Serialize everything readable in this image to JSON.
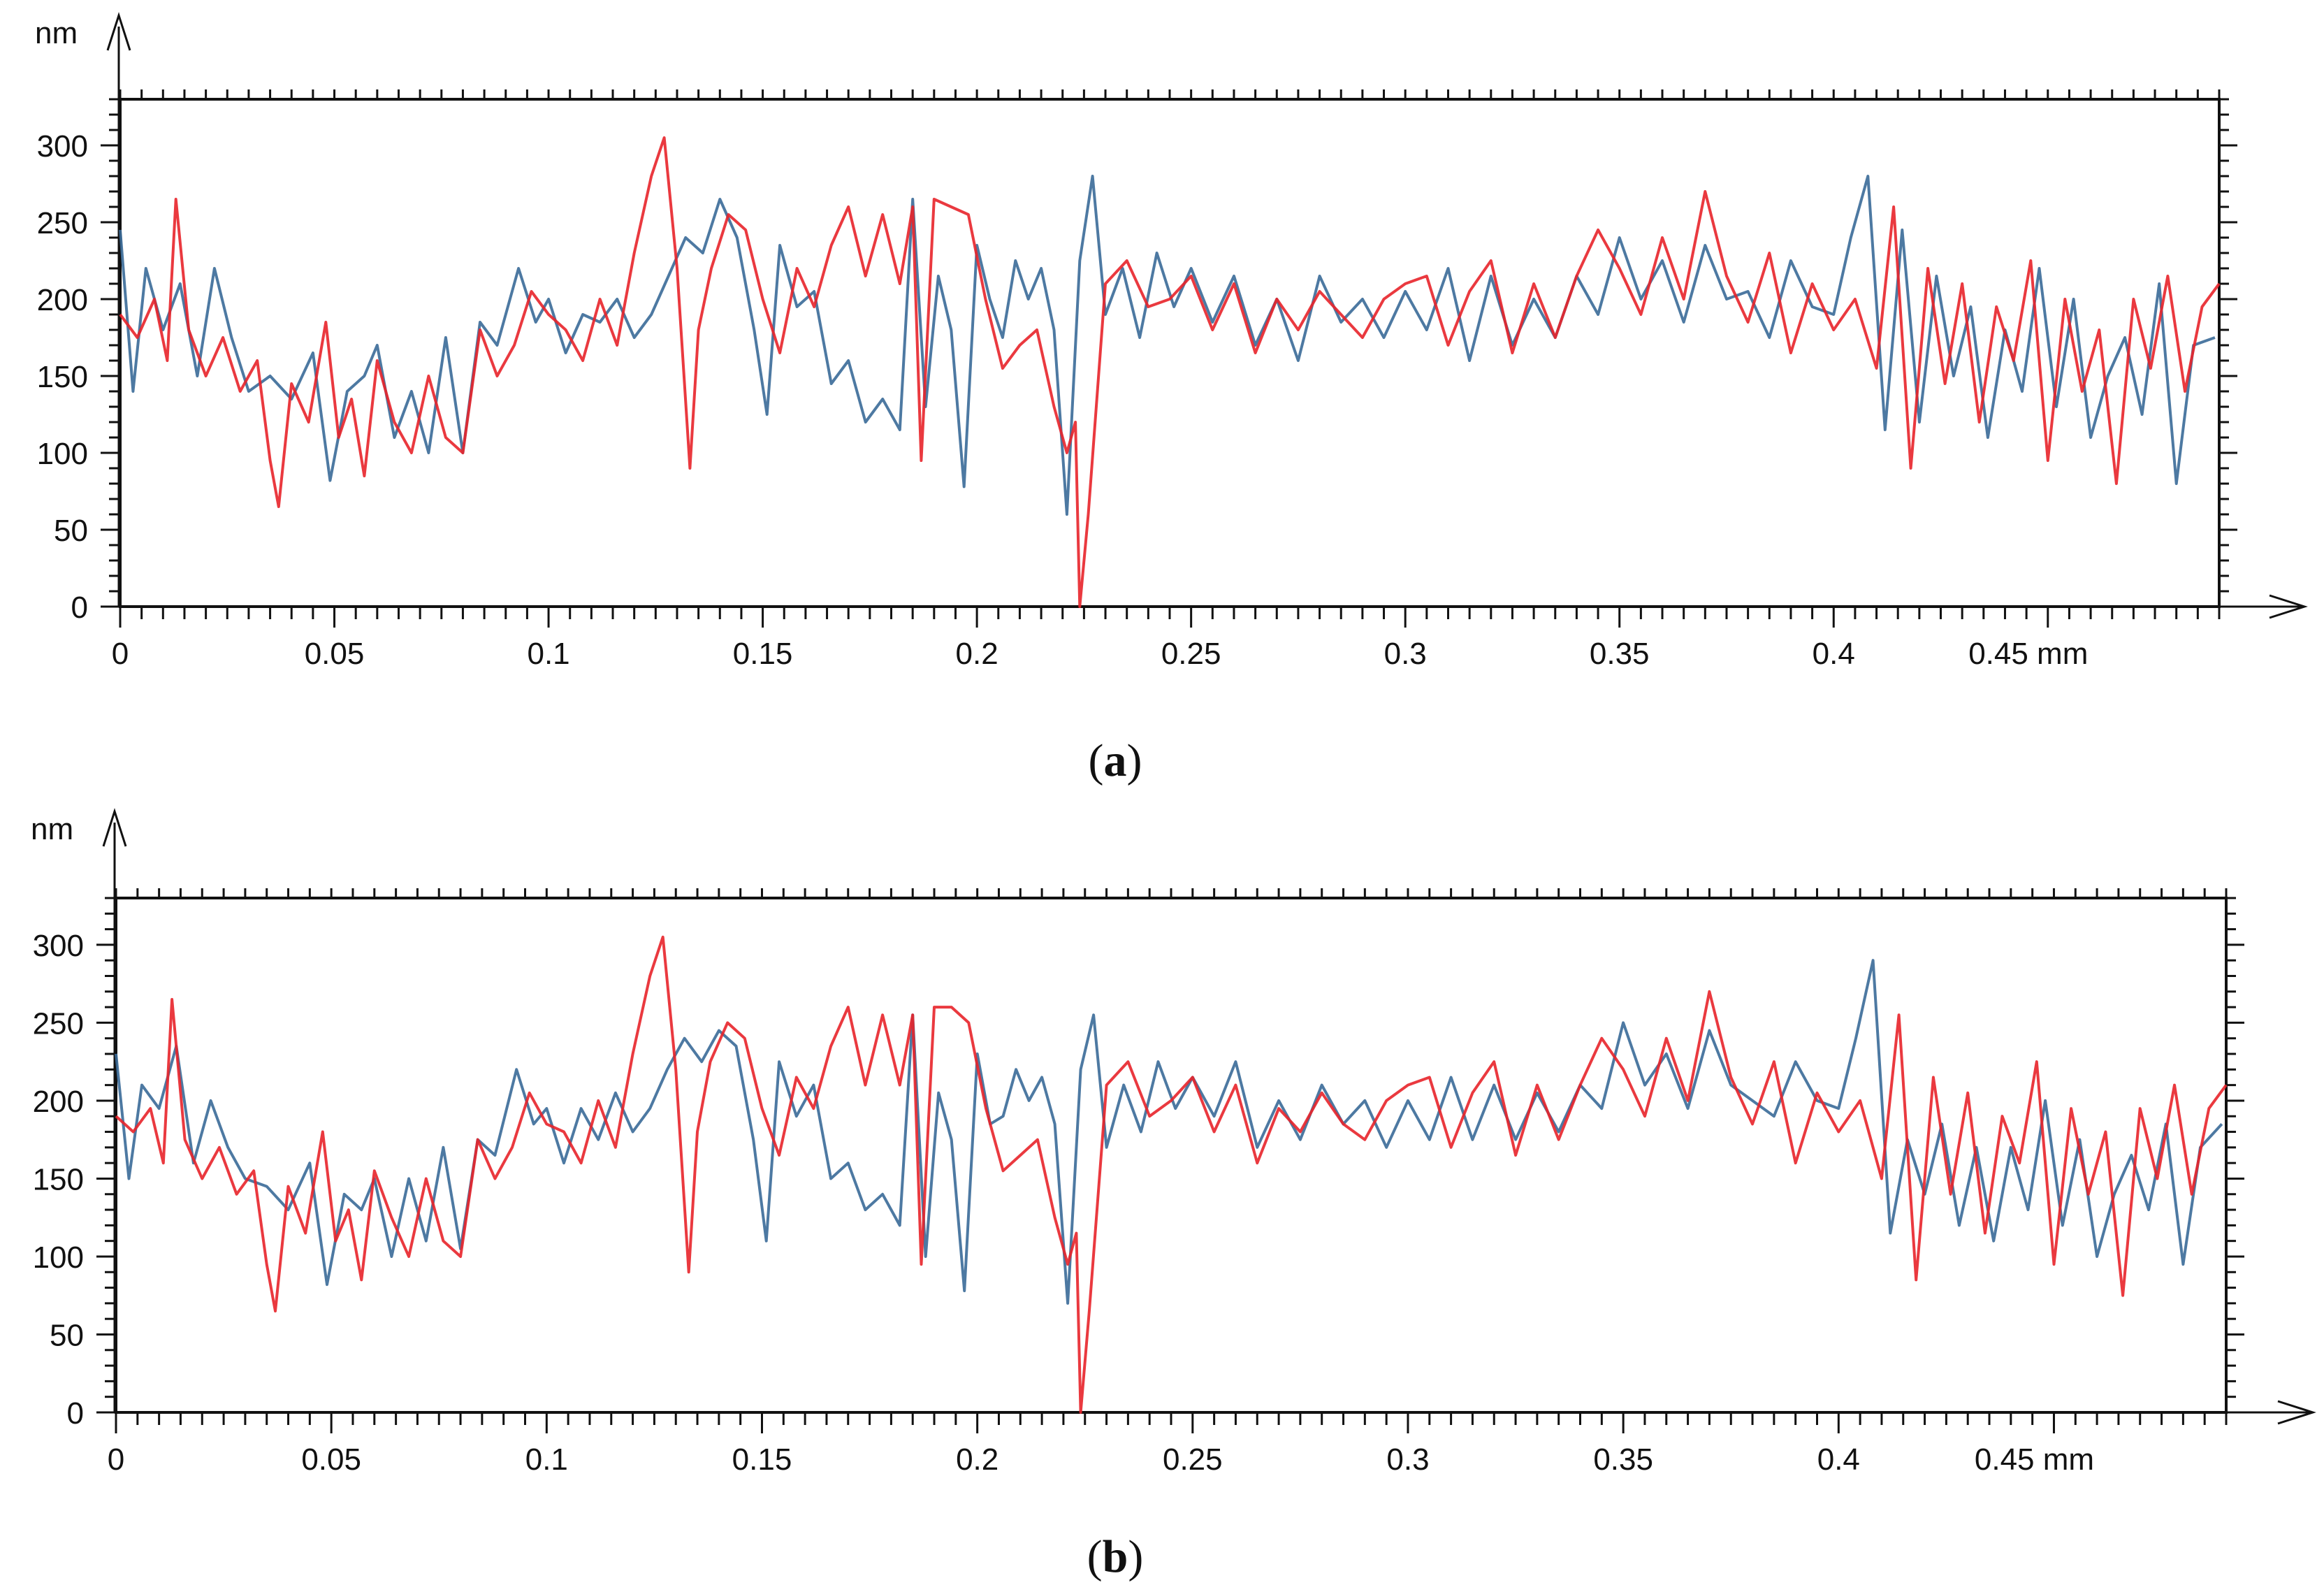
{
  "figure": {
    "panels": [
      {
        "caption_open": "(",
        "caption_letter": "a",
        "caption_close": ")"
      },
      {
        "caption_open": "(",
        "caption_letter": "b",
        "caption_close": ")"
      }
    ]
  },
  "chart_data": [
    {
      "type": "line",
      "panel": "a",
      "ylabel": "nm",
      "xlabel": "mm",
      "xlim": [
        0,
        0.49
      ],
      "ylim": [
        0,
        330
      ],
      "grid": true,
      "x_ticks": [
        "0",
        "0.05",
        "0.1",
        "0.15",
        "0.2",
        "0.25",
        "0.3",
        "0.35",
        "0.4",
        "0.45 mm"
      ],
      "x_tick_values": [
        0,
        0.05,
        0.1,
        0.15,
        0.2,
        0.25,
        0.3,
        0.35,
        0.4,
        0.45
      ],
      "y_ticks": [
        "0",
        "50",
        "100",
        "150",
        "200",
        "250",
        "300"
      ],
      "y_tick_values": [
        0,
        50,
        100,
        150,
        200,
        250,
        300
      ],
      "series": [
        {
          "name": "blue profile",
          "color": "#3a6a98",
          "x": [
            0,
            0.003,
            0.006,
            0.01,
            0.014,
            0.018,
            0.022,
            0.026,
            0.03,
            0.035,
            0.04,
            0.045,
            0.049,
            0.053,
            0.057,
            0.06,
            0.064,
            0.068,
            0.072,
            0.076,
            0.08,
            0.084,
            0.088,
            0.093,
            0.097,
            0.1,
            0.104,
            0.108,
            0.112,
            0.116,
            0.12,
            0.124,
            0.128,
            0.132,
            0.136,
            0.14,
            0.144,
            0.148,
            0.151,
            0.154,
            0.158,
            0.162,
            0.166,
            0.17,
            0.174,
            0.178,
            0.182,
            0.185,
            0.188,
            0.191,
            0.194,
            0.197,
            0.2,
            0.203,
            0.206,
            0.209,
            0.212,
            0.215,
            0.218,
            0.221,
            0.224,
            0.227,
            0.23,
            0.234,
            0.238,
            0.242,
            0.246,
            0.25,
            0.255,
            0.26,
            0.265,
            0.27,
            0.275,
            0.28,
            0.285,
            0.29,
            0.295,
            0.3,
            0.305,
            0.31,
            0.315,
            0.32,
            0.325,
            0.33,
            0.335,
            0.34,
            0.345,
            0.35,
            0.355,
            0.36,
            0.365,
            0.37,
            0.375,
            0.38,
            0.385,
            0.39,
            0.395,
            0.4,
            0.404,
            0.408,
            0.412,
            0.416,
            0.42,
            0.424,
            0.428,
            0.432,
            0.436,
            0.44,
            0.444,
            0.448,
            0.452,
            0.456,
            0.46,
            0.464,
            0.468,
            0.472,
            0.476,
            0.48,
            0.484,
            0.489
          ],
          "y": [
            245,
            140,
            220,
            180,
            210,
            150,
            220,
            175,
            140,
            150,
            135,
            165,
            82,
            140,
            150,
            170,
            110,
            140,
            100,
            175,
            100,
            185,
            170,
            220,
            185,
            200,
            165,
            190,
            185,
            200,
            175,
            190,
            215,
            240,
            230,
            265,
            240,
            180,
            125,
            235,
            195,
            205,
            145,
            160,
            120,
            135,
            115,
            265,
            130,
            215,
            180,
            78,
            235,
            200,
            175,
            225,
            200,
            220,
            180,
            60,
            225,
            280,
            190,
            220,
            175,
            230,
            195,
            220,
            185,
            215,
            170,
            200,
            160,
            215,
            185,
            200,
            175,
            205,
            180,
            220,
            160,
            215,
            170,
            200,
            175,
            215,
            190,
            240,
            200,
            225,
            185,
            235,
            200,
            205,
            175,
            225,
            195,
            190,
            240,
            280,
            115,
            245,
            120,
            215,
            150,
            195,
            110,
            180,
            140,
            220,
            130,
            200,
            110,
            150,
            175,
            125,
            210,
            80,
            170,
            175
          ]
        },
        {
          "name": "red profile",
          "color": "#e8232a",
          "x": [
            0,
            0.004,
            0.008,
            0.011,
            0.013,
            0.016,
            0.02,
            0.024,
            0.028,
            0.032,
            0.035,
            0.037,
            0.04,
            0.044,
            0.048,
            0.051,
            0.054,
            0.057,
            0.06,
            0.064,
            0.068,
            0.072,
            0.076,
            0.08,
            0.084,
            0.088,
            0.092,
            0.096,
            0.1,
            0.104,
            0.108,
            0.112,
            0.116,
            0.12,
            0.124,
            0.127,
            0.13,
            0.133,
            0.135,
            0.138,
            0.142,
            0.146,
            0.15,
            0.154,
            0.158,
            0.162,
            0.166,
            0.17,
            0.174,
            0.178,
            0.182,
            0.185,
            0.187,
            0.19,
            0.194,
            0.198,
            0.202,
            0.206,
            0.21,
            0.214,
            0.218,
            0.221,
            0.223,
            0.224,
            0.226,
            0.23,
            0.235,
            0.24,
            0.245,
            0.25,
            0.255,
            0.26,
            0.265,
            0.27,
            0.275,
            0.28,
            0.285,
            0.29,
            0.295,
            0.3,
            0.305,
            0.31,
            0.315,
            0.32,
            0.325,
            0.33,
            0.335,
            0.34,
            0.345,
            0.35,
            0.355,
            0.36,
            0.365,
            0.37,
            0.375,
            0.38,
            0.385,
            0.39,
            0.395,
            0.4,
            0.405,
            0.41,
            0.414,
            0.418,
            0.422,
            0.426,
            0.43,
            0.434,
            0.438,
            0.442,
            0.446,
            0.45,
            0.454,
            0.458,
            0.462,
            0.466,
            0.47,
            0.474,
            0.478,
            0.482,
            0.486,
            0.49
          ],
          "y": [
            190,
            175,
            200,
            160,
            265,
            180,
            150,
            175,
            140,
            160,
            95,
            65,
            145,
            120,
            185,
            110,
            135,
            85,
            160,
            120,
            100,
            150,
            110,
            100,
            180,
            150,
            170,
            205,
            190,
            180,
            160,
            200,
            170,
            230,
            280,
            305,
            220,
            90,
            180,
            220,
            255,
            245,
            200,
            165,
            220,
            195,
            235,
            260,
            215,
            255,
            210,
            260,
            95,
            265,
            260,
            255,
            200,
            155,
            170,
            180,
            130,
            100,
            120,
            0,
            60,
            210,
            225,
            195,
            200,
            215,
            180,
            210,
            165,
            200,
            180,
            205,
            190,
            175,
            200,
            210,
            215,
            170,
            205,
            225,
            165,
            210,
            175,
            215,
            245,
            220,
            190,
            240,
            200,
            270,
            215,
            185,
            230,
            165,
            210,
            180,
            200,
            155,
            260,
            90,
            220,
            145,
            210,
            120,
            195,
            160,
            225,
            95,
            200,
            140,
            180,
            80,
            200,
            155,
            215,
            140,
            195,
            210
          ]
        }
      ]
    },
    {
      "type": "line",
      "panel": "b",
      "ylabel": "nm",
      "xlabel": "mm",
      "xlim": [
        0,
        0.49
      ],
      "ylim": [
        0,
        330
      ],
      "grid": true,
      "x_ticks": [
        "0",
        "0.05",
        "0.1",
        "0.15",
        "0.2",
        "0.25",
        "0.3",
        "0.35",
        "0.4",
        "0.45 mm"
      ],
      "x_tick_values": [
        0,
        0.05,
        0.1,
        0.15,
        0.2,
        0.25,
        0.3,
        0.35,
        0.4,
        0.45
      ],
      "y_ticks": [
        "0",
        "50",
        "100",
        "150",
        "200",
        "250",
        "300"
      ],
      "y_tick_values": [
        0,
        50,
        100,
        150,
        200,
        250,
        300
      ],
      "series": [
        {
          "name": "blue profile",
          "color": "#3a6a98",
          "x": [
            0,
            0.003,
            0.006,
            0.01,
            0.014,
            0.018,
            0.022,
            0.026,
            0.03,
            0.035,
            0.04,
            0.045,
            0.049,
            0.053,
            0.057,
            0.06,
            0.064,
            0.068,
            0.072,
            0.076,
            0.08,
            0.084,
            0.088,
            0.093,
            0.097,
            0.1,
            0.104,
            0.108,
            0.112,
            0.116,
            0.12,
            0.124,
            0.128,
            0.132,
            0.136,
            0.14,
            0.144,
            0.148,
            0.151,
            0.154,
            0.158,
            0.162,
            0.166,
            0.17,
            0.174,
            0.178,
            0.182,
            0.185,
            0.188,
            0.191,
            0.194,
            0.197,
            0.2,
            0.203,
            0.206,
            0.209,
            0.212,
            0.215,
            0.218,
            0.221,
            0.224,
            0.227,
            0.23,
            0.234,
            0.238,
            0.242,
            0.246,
            0.25,
            0.255,
            0.26,
            0.265,
            0.27,
            0.275,
            0.28,
            0.285,
            0.29,
            0.295,
            0.3,
            0.305,
            0.31,
            0.315,
            0.32,
            0.325,
            0.33,
            0.335,
            0.34,
            0.345,
            0.35,
            0.355,
            0.36,
            0.365,
            0.37,
            0.375,
            0.38,
            0.385,
            0.39,
            0.395,
            0.4,
            0.404,
            0.408,
            0.412,
            0.416,
            0.42,
            0.424,
            0.428,
            0.432,
            0.436,
            0.44,
            0.444,
            0.448,
            0.452,
            0.456,
            0.46,
            0.464,
            0.468,
            0.472,
            0.476,
            0.48,
            0.484,
            0.489
          ],
          "y": [
            230,
            150,
            210,
            195,
            235,
            160,
            200,
            170,
            150,
            145,
            130,
            160,
            82,
            140,
            130,
            150,
            100,
            150,
            110,
            170,
            105,
            175,
            165,
            220,
            185,
            195,
            160,
            195,
            175,
            205,
            180,
            195,
            220,
            240,
            225,
            245,
            235,
            175,
            110,
            225,
            190,
            210,
            150,
            160,
            130,
            140,
            120,
            255,
            100,
            205,
            175,
            78,
            230,
            185,
            190,
            220,
            200,
            215,
            185,
            70,
            220,
            255,
            170,
            210,
            180,
            225,
            195,
            215,
            190,
            225,
            170,
            200,
            175,
            210,
            185,
            200,
            170,
            200,
            175,
            215,
            175,
            210,
            175,
            205,
            180,
            210,
            195,
            250,
            210,
            230,
            195,
            245,
            210,
            200,
            190,
            225,
            200,
            195,
            240,
            290,
            115,
            175,
            140,
            185,
            120,
            170,
            110,
            170,
            130,
            200,
            120,
            175,
            100,
            140,
            165,
            130,
            185,
            95,
            170,
            185
          ]
        },
        {
          "name": "red profile",
          "color": "#e8232a",
          "x": [
            0,
            0.004,
            0.008,
            0.011,
            0.013,
            0.016,
            0.02,
            0.024,
            0.028,
            0.032,
            0.035,
            0.037,
            0.04,
            0.044,
            0.048,
            0.051,
            0.054,
            0.057,
            0.06,
            0.064,
            0.068,
            0.072,
            0.076,
            0.08,
            0.084,
            0.088,
            0.092,
            0.096,
            0.1,
            0.104,
            0.108,
            0.112,
            0.116,
            0.12,
            0.124,
            0.127,
            0.13,
            0.133,
            0.135,
            0.138,
            0.142,
            0.146,
            0.15,
            0.154,
            0.158,
            0.162,
            0.166,
            0.17,
            0.174,
            0.178,
            0.182,
            0.185,
            0.187,
            0.19,
            0.194,
            0.198,
            0.202,
            0.206,
            0.21,
            0.214,
            0.218,
            0.221,
            0.223,
            0.224,
            0.226,
            0.23,
            0.235,
            0.24,
            0.245,
            0.25,
            0.255,
            0.26,
            0.265,
            0.27,
            0.275,
            0.28,
            0.285,
            0.29,
            0.295,
            0.3,
            0.305,
            0.31,
            0.315,
            0.32,
            0.325,
            0.33,
            0.335,
            0.34,
            0.345,
            0.35,
            0.355,
            0.36,
            0.365,
            0.37,
            0.375,
            0.38,
            0.385,
            0.39,
            0.395,
            0.4,
            0.405,
            0.41,
            0.414,
            0.418,
            0.422,
            0.426,
            0.43,
            0.434,
            0.438,
            0.442,
            0.446,
            0.45,
            0.454,
            0.458,
            0.462,
            0.466,
            0.47,
            0.474,
            0.478,
            0.482,
            0.486,
            0.49
          ],
          "y": [
            190,
            180,
            195,
            160,
            265,
            175,
            150,
            170,
            140,
            155,
            95,
            65,
            145,
            115,
            180,
            110,
            130,
            85,
            155,
            125,
            100,
            150,
            110,
            100,
            175,
            150,
            170,
            205,
            185,
            180,
            160,
            200,
            170,
            230,
            280,
            305,
            220,
            90,
            180,
            225,
            250,
            240,
            195,
            165,
            215,
            195,
            235,
            260,
            210,
            255,
            210,
            255,
            95,
            260,
            260,
            250,
            195,
            155,
            165,
            175,
            125,
            95,
            115,
            0,
            65,
            210,
            225,
            190,
            200,
            215,
            180,
            210,
            160,
            195,
            180,
            205,
            185,
            175,
            200,
            210,
            215,
            170,
            205,
            225,
            165,
            210,
            175,
            210,
            240,
            220,
            190,
            240,
            200,
            270,
            215,
            185,
            225,
            160,
            205,
            180,
            200,
            150,
            255,
            85,
            215,
            140,
            205,
            115,
            190,
            160,
            225,
            95,
            195,
            140,
            180,
            75,
            195,
            150,
            210,
            140,
            195,
            210
          ]
        }
      ]
    }
  ]
}
